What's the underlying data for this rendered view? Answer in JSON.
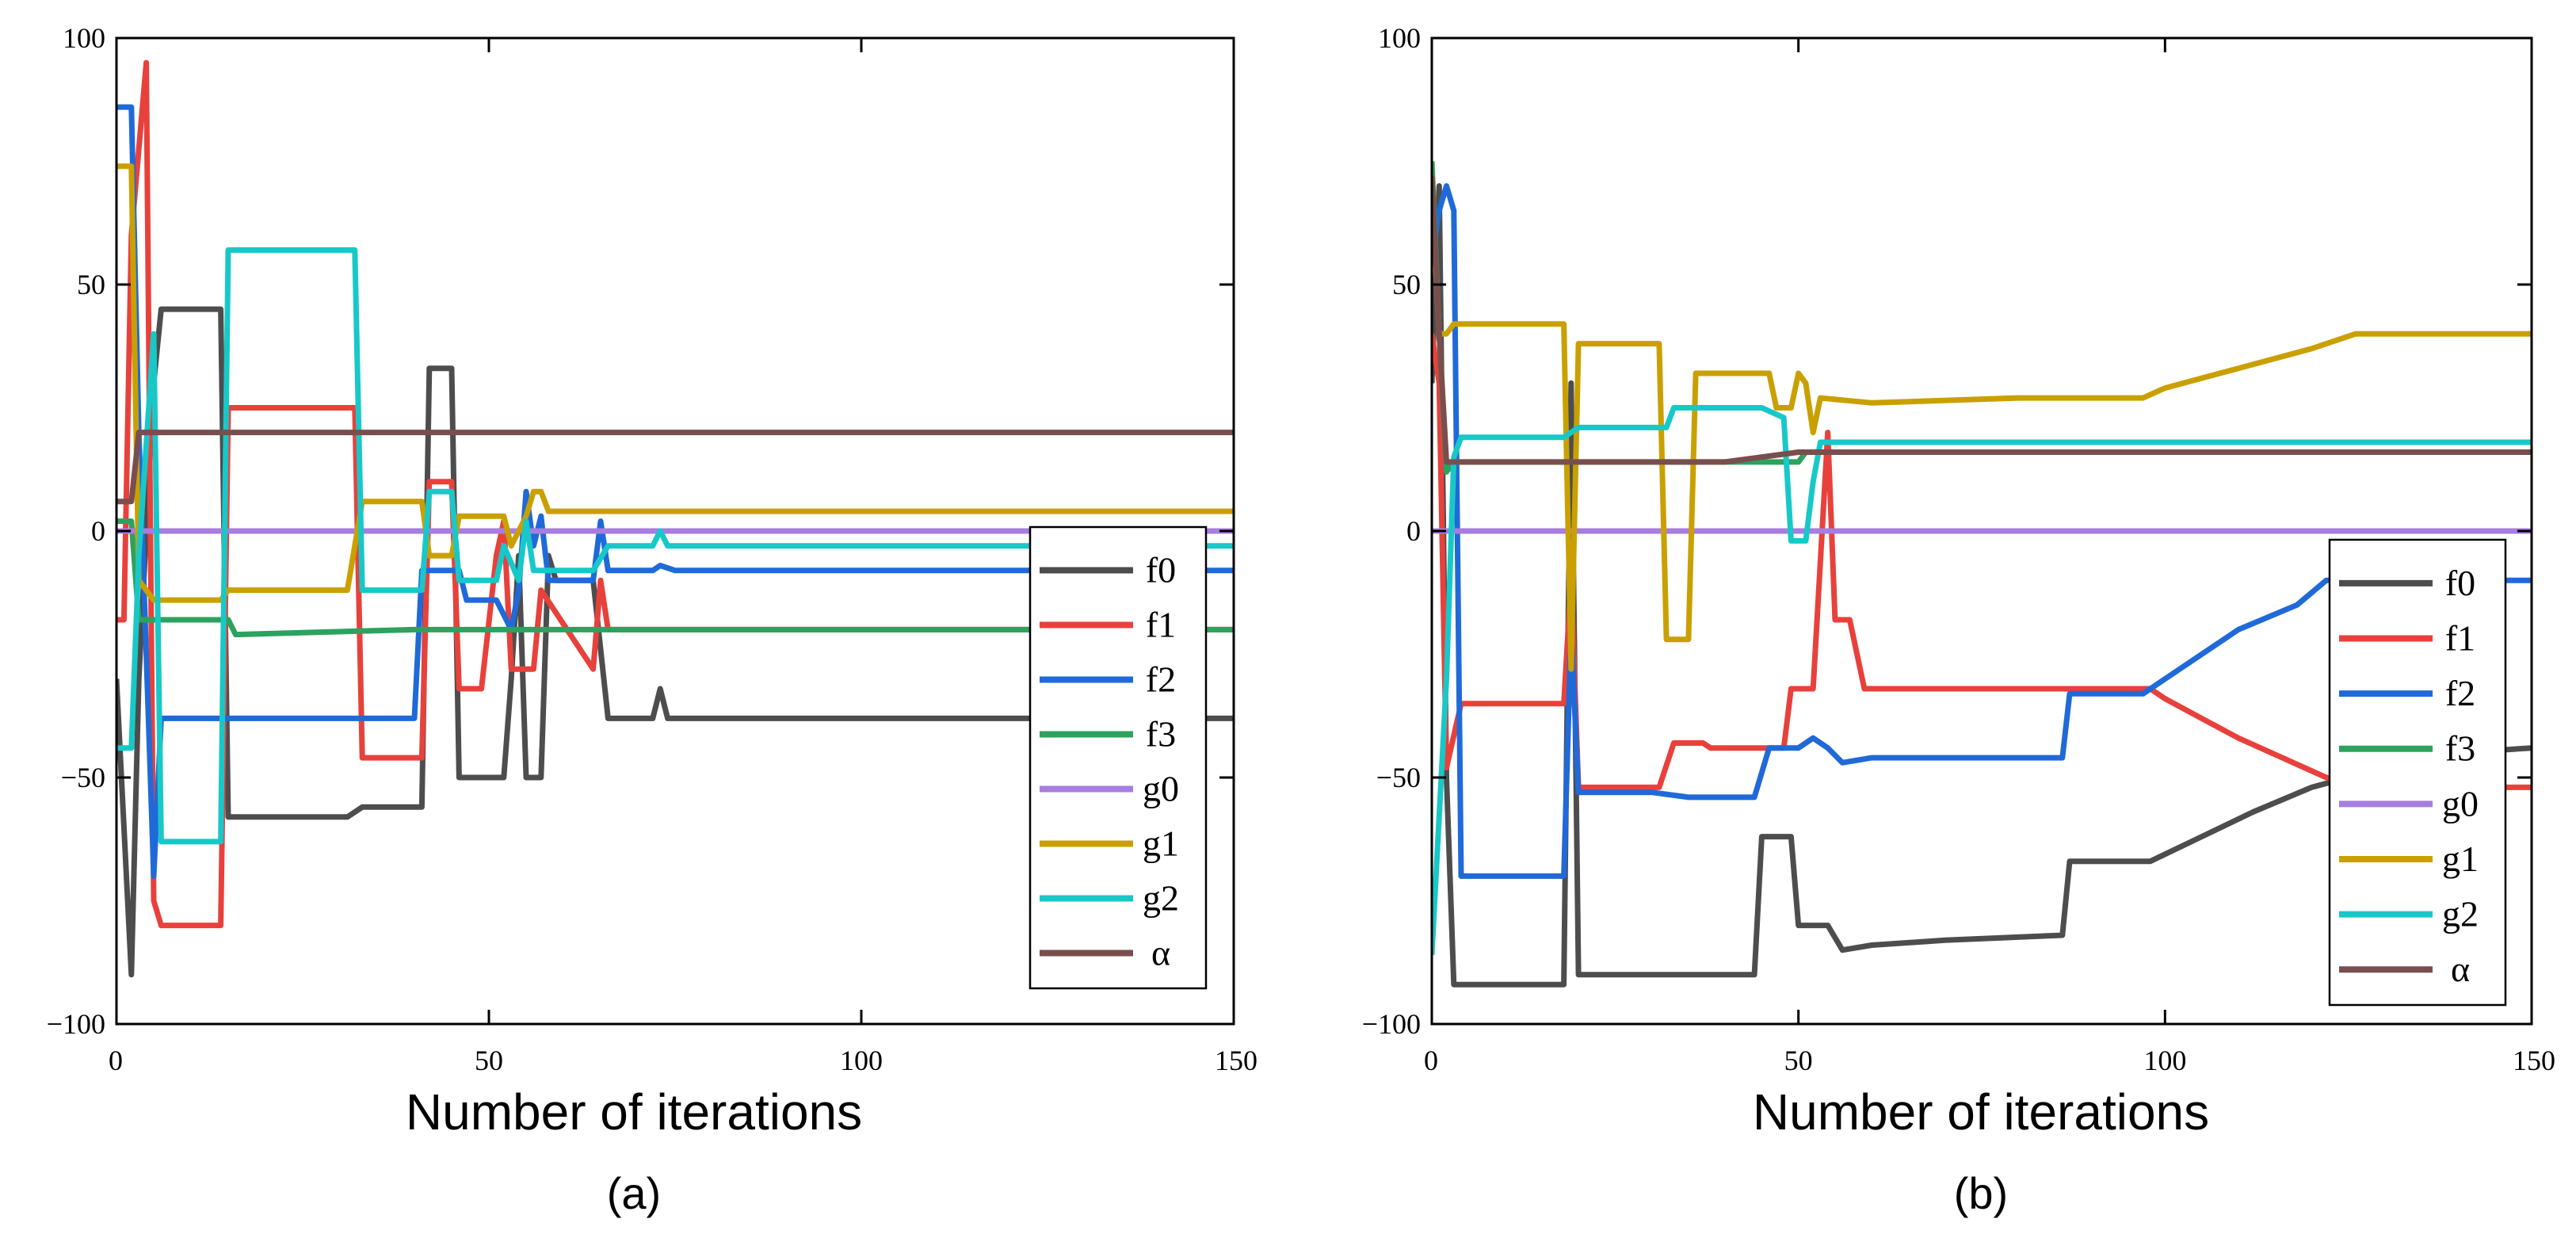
{
  "chart_data": [
    {
      "type": "line",
      "panel_label": "(a)",
      "xlabel": "Number of iterations",
      "ylabel": "",
      "xlim": [
        0,
        150
      ],
      "ylim": [
        -100,
        100
      ],
      "xticks": [
        "0",
        "50",
        "100",
        "150"
      ],
      "yticks": [
        "100",
        "50",
        "0",
        "−50",
        "−100"
      ],
      "legend_placement": "lower-right",
      "series": [
        {
          "name": "f0",
          "color": "#4d4d4d",
          "points": [
            [
              0,
              -30
            ],
            [
              2,
              -90
            ],
            [
              3,
              -30
            ],
            [
              5,
              30
            ],
            [
              6,
              45
            ],
            [
              14,
              45
            ],
            [
              15,
              -58
            ],
            [
              31,
              -58
            ],
            [
              33,
              -56
            ],
            [
              41,
              -56
            ],
            [
              42,
              33
            ],
            [
              45,
              33
            ],
            [
              46,
              -50
            ],
            [
              52,
              -50
            ],
            [
              53,
              -30
            ],
            [
              54,
              -5
            ],
            [
              55,
              -50
            ],
            [
              57,
              -50
            ],
            [
              58,
              -5
            ],
            [
              59,
              -10
            ],
            [
              64,
              -10
            ],
            [
              66,
              -38
            ],
            [
              72,
              -38
            ],
            [
              73,
              -32
            ],
            [
              74,
              -38
            ],
            [
              150,
              -38
            ]
          ]
        },
        {
          "name": "f1",
          "color": "#e8413c",
          "points": [
            [
              0,
              -18
            ],
            [
              1,
              -18
            ],
            [
              2,
              60
            ],
            [
              4,
              95
            ],
            [
              5,
              -75
            ],
            [
              6,
              -80
            ],
            [
              14,
              -80
            ],
            [
              15,
              25
            ],
            [
              32,
              25
            ],
            [
              33,
              -46
            ],
            [
              41,
              -46
            ],
            [
              42,
              10
            ],
            [
              45,
              10
            ],
            [
              46,
              -32
            ],
            [
              49,
              -32
            ],
            [
              51,
              -5
            ],
            [
              52,
              2
            ],
            [
              53,
              -28
            ],
            [
              56,
              -28
            ],
            [
              57,
              -12
            ],
            [
              64,
              -28
            ],
            [
              65,
              -10
            ],
            [
              66,
              -20
            ],
            [
              80,
              -20
            ],
            [
              81,
              -20
            ],
            [
              150,
              -20
            ]
          ]
        },
        {
          "name": "f2",
          "color": "#1f6ad8",
          "points": [
            [
              0,
              86
            ],
            [
              2,
              86
            ],
            [
              3,
              20
            ],
            [
              5,
              -70
            ],
            [
              6,
              -38
            ],
            [
              40,
              -38
            ],
            [
              41,
              -8
            ],
            [
              46,
              -8
            ],
            [
              47,
              -14
            ],
            [
              51,
              -14
            ],
            [
              53,
              -20
            ],
            [
              54,
              -12
            ],
            [
              55,
              8
            ],
            [
              56,
              -3
            ],
            [
              57,
              3
            ],
            [
              58,
              -10
            ],
            [
              64,
              -10
            ],
            [
              65,
              2
            ],
            [
              66,
              -8
            ],
            [
              72,
              -8
            ],
            [
              73,
              -7
            ],
            [
              75,
              -8
            ],
            [
              150,
              -8
            ]
          ]
        },
        {
          "name": "f3",
          "color": "#2ca25f",
          "points": [
            [
              0,
              2
            ],
            [
              2,
              2
            ],
            [
              3,
              -18
            ],
            [
              15,
              -18
            ],
            [
              16,
              -21
            ],
            [
              40,
              -20
            ],
            [
              41,
              -20
            ],
            [
              150,
              -20
            ]
          ]
        },
        {
          "name": "g0",
          "color": "#a77de0",
          "points": [
            [
              0,
              0
            ],
            [
              150,
              0
            ]
          ]
        },
        {
          "name": "g1",
          "color": "#c9a000",
          "points": [
            [
              0,
              74
            ],
            [
              2,
              74
            ],
            [
              3,
              -10
            ],
            [
              5,
              -14
            ],
            [
              14,
              -14
            ],
            [
              15,
              -12
            ],
            [
              31,
              -12
            ],
            [
              33,
              6
            ],
            [
              41,
              6
            ],
            [
              42,
              -5
            ],
            [
              45,
              -5
            ],
            [
              46,
              3
            ],
            [
              52,
              3
            ],
            [
              53,
              -3
            ],
            [
              55,
              3
            ],
            [
              56,
              8
            ],
            [
              57,
              8
            ],
            [
              58,
              4
            ],
            [
              150,
              4
            ]
          ]
        },
        {
          "name": "g2",
          "color": "#18c8c8",
          "points": [
            [
              0,
              -44
            ],
            [
              2,
              -44
            ],
            [
              3,
              -5
            ],
            [
              5,
              40
            ],
            [
              6,
              -63
            ],
            [
              14,
              -63
            ],
            [
              15,
              57
            ],
            [
              32,
              57
            ],
            [
              33,
              -12
            ],
            [
              41,
              -12
            ],
            [
              42,
              8
            ],
            [
              45,
              8
            ],
            [
              46,
              -10
            ],
            [
              51,
              -10
            ],
            [
              52,
              -3
            ],
            [
              54,
              -10
            ],
            [
              55,
              2
            ],
            [
              56,
              -8
            ],
            [
              64,
              -8
            ],
            [
              66,
              -3
            ],
            [
              72,
              -3
            ],
            [
              73,
              0
            ],
            [
              74,
              -3
            ],
            [
              150,
              -3
            ]
          ]
        },
        {
          "name": "α",
          "color": "#7a4e4e",
          "points": [
            [
              0,
              6
            ],
            [
              2,
              6
            ],
            [
              3,
              20
            ],
            [
              5,
              20
            ],
            [
              150,
              20
            ]
          ]
        }
      ]
    },
    {
      "type": "line",
      "panel_label": "(b)",
      "xlabel": "Number of iterations",
      "ylabel": "",
      "xlim": [
        0,
        150
      ],
      "ylim": [
        -100,
        100
      ],
      "xticks": [
        "0",
        "50",
        "100",
        "150"
      ],
      "yticks": [
        "100",
        "50",
        "0",
        "−50",
        "−100"
      ],
      "legend_placement": "lower-right",
      "series": [
        {
          "name": "f0",
          "color": "#4d4d4d",
          "points": [
            [
              0,
              30
            ],
            [
              1,
              70
            ],
            [
              2,
              -50
            ],
            [
              3,
              -92
            ],
            [
              18,
              -92
            ],
            [
              19,
              30
            ],
            [
              20,
              -90
            ],
            [
              44,
              -90
            ],
            [
              45,
              -62
            ],
            [
              49,
              -62
            ],
            [
              50,
              -80
            ],
            [
              54,
              -80
            ],
            [
              56,
              -85
            ],
            [
              60,
              -84
            ],
            [
              70,
              -83
            ],
            [
              86,
              -82
            ],
            [
              87,
              -67
            ],
            [
              98,
              -67
            ],
            [
              105,
              -62
            ],
            [
              112,
              -57
            ],
            [
              120,
              -52
            ],
            [
              125,
              -50
            ],
            [
              130,
              -46
            ],
            [
              150,
              -44
            ]
          ]
        },
        {
          "name": "f1",
          "color": "#e8413c",
          "points": [
            [
              0,
              40
            ],
            [
              1,
              30
            ],
            [
              2,
              -48
            ],
            [
              4,
              -35
            ],
            [
              18,
              -35
            ],
            [
              19,
              -10
            ],
            [
              20,
              -52
            ],
            [
              31,
              -52
            ],
            [
              33,
              -43
            ],
            [
              37,
              -43
            ],
            [
              38,
              -44
            ],
            [
              48,
              -44
            ],
            [
              49,
              -32
            ],
            [
              52,
              -32
            ],
            [
              54,
              20
            ],
            [
              55,
              -18
            ],
            [
              57,
              -18
            ],
            [
              59,
              -32
            ],
            [
              70,
              -32
            ],
            [
              98,
              -32
            ],
            [
              100,
              -34
            ],
            [
              105,
              -38
            ],
            [
              110,
              -42
            ],
            [
              116,
              -46
            ],
            [
              122,
              -50
            ],
            [
              130,
              -52
            ],
            [
              150,
              -52
            ]
          ]
        },
        {
          "name": "f2",
          "color": "#1f6ad8",
          "points": [
            [
              0,
              55
            ],
            [
              1,
              65
            ],
            [
              2,
              70
            ],
            [
              3,
              65
            ],
            [
              4,
              -70
            ],
            [
              18,
              -70
            ],
            [
              19,
              -20
            ],
            [
              20,
              -53
            ],
            [
              30,
              -53
            ],
            [
              35,
              -54
            ],
            [
              44,
              -54
            ],
            [
              46,
              -44
            ],
            [
              50,
              -44
            ],
            [
              52,
              -42
            ],
            [
              54,
              -44
            ],
            [
              56,
              -47
            ],
            [
              60,
              -46
            ],
            [
              86,
              -46
            ],
            [
              87,
              -33
            ],
            [
              97,
              -33
            ],
            [
              100,
              -30
            ],
            [
              105,
              -25
            ],
            [
              110,
              -20
            ],
            [
              118,
              -15
            ],
            [
              122,
              -10
            ],
            [
              130,
              -10
            ],
            [
              150,
              -10
            ]
          ]
        },
        {
          "name": "f3",
          "color": "#2ca25f",
          "points": [
            [
              0,
              75
            ],
            [
              1,
              40
            ],
            [
              2,
              12
            ],
            [
              3,
              14
            ],
            [
              50,
              14
            ],
            [
              51,
              16
            ],
            [
              150,
              16
            ]
          ]
        },
        {
          "name": "g0",
          "color": "#a77de0",
          "points": [
            [
              0,
              0
            ],
            [
              150,
              0
            ]
          ]
        },
        {
          "name": "g1",
          "color": "#c9a000",
          "points": [
            [
              0,
              70
            ],
            [
              1,
              40
            ],
            [
              2,
              40
            ],
            [
              3,
              42
            ],
            [
              18,
              42
            ],
            [
              19,
              -28
            ],
            [
              20,
              38
            ],
            [
              31,
              38
            ],
            [
              32,
              -22
            ],
            [
              35,
              -22
            ],
            [
              36,
              32
            ],
            [
              46,
              32
            ],
            [
              47,
              25
            ],
            [
              49,
              25
            ],
            [
              50,
              32
            ],
            [
              51,
              30
            ],
            [
              52,
              20
            ],
            [
              53,
              27
            ],
            [
              60,
              26
            ],
            [
              80,
              27
            ],
            [
              97,
              27
            ],
            [
              100,
              29
            ],
            [
              110,
              33
            ],
            [
              120,
              37
            ],
            [
              126,
              40
            ],
            [
              150,
              40
            ]
          ]
        },
        {
          "name": "g2",
          "color": "#18c8c8",
          "points": [
            [
              0,
              -86
            ],
            [
              2,
              -30
            ],
            [
              3,
              15
            ],
            [
              4,
              19
            ],
            [
              18,
              19
            ],
            [
              20,
              21
            ],
            [
              32,
              21
            ],
            [
              33,
              25
            ],
            [
              45,
              25
            ],
            [
              48,
              23
            ],
            [
              49,
              -2
            ],
            [
              51,
              -2
            ],
            [
              52,
              10
            ],
            [
              53,
              18
            ],
            [
              60,
              18
            ],
            [
              150,
              18
            ]
          ]
        },
        {
          "name": "α",
          "color": "#7a4e4e",
          "points": [
            [
              0,
              72
            ],
            [
              1,
              40
            ],
            [
              2,
              14
            ],
            [
              3,
              14
            ],
            [
              40,
              14
            ],
            [
              50,
              16
            ],
            [
              150,
              16
            ]
          ]
        }
      ]
    }
  ]
}
